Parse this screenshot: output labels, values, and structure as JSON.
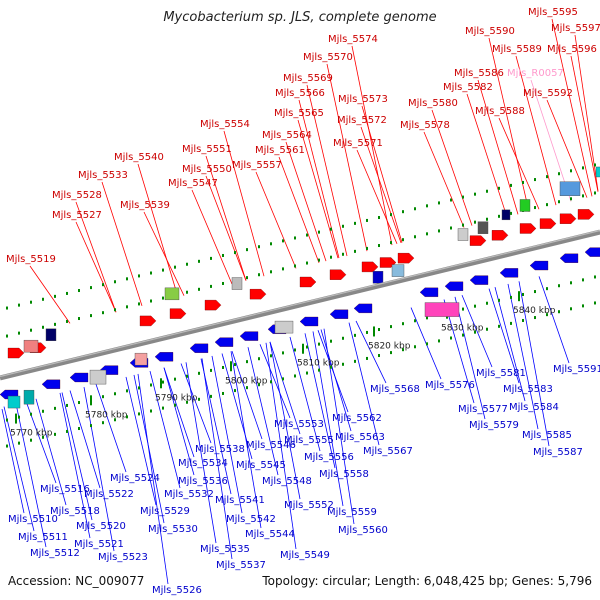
{
  "title": "Mycobacterium sp. JLS, complete genome",
  "footer": {
    "accession": "Accession: NC_009077",
    "summary": "Topology: circular; Length: 6,048,425 bp; Genes: 5,796"
  },
  "colors": {
    "forward_gene": "#ff0000",
    "reverse_gene": "#0000ee",
    "rna_gene": "#ff99cc",
    "backbone": "#888888",
    "tick_mark": "#008800"
  },
  "scale_ticks": [
    "5770 kbp",
    "5780 kbp",
    "5790 kbp",
    "5800 kbp",
    "5810 kbp",
    "5820 kbp",
    "5830 kbp",
    "5840 kbp"
  ],
  "labels_top": [
    "Mjls_5519",
    "Mjls_5527",
    "Mjls_5528",
    "Mjls_5533",
    "Mjls_5539",
    "Mjls_5540",
    "Mjls_5547",
    "Mjls_5550",
    "Mjls_5551",
    "Mjls_5554",
    "Mjls_5557",
    "Mjls_5561",
    "Mjls_5564",
    "Mjls_5565",
    "Mjls_5566",
    "Mjls_5569",
    "Mjls_5570",
    "Mjls_5571",
    "Mjls_5572",
    "Mjls_5573",
    "Mjls_5574",
    "Mjls_5578",
    "Mjls_5580",
    "Mjls_5582",
    "Mjls_5586",
    "Mjls_5588",
    "Mjls_5589",
    "Mjls_5590",
    "Mjls_R0057",
    "Mjls_5592",
    "Mjls_5595",
    "Mjls_5596",
    "Mjls_5597"
  ],
  "labels_bottom": [
    "Mjls_5510",
    "Mjls_5511",
    "Mjls_5512",
    "Mjls_5516",
    "Mjls_5518",
    "Mjls_5520",
    "Mjls_5521",
    "Mjls_5522",
    "Mjls_5523",
    "Mjls_5524",
    "Mjls_5526",
    "Mjls_5529",
    "Mjls_5530",
    "Mjls_5532",
    "Mjls_5534",
    "Mjls_5535",
    "Mjls_5536",
    "Mjls_5537",
    "Mjls_5538",
    "Mjls_5541",
    "Mjls_5542",
    "Mjls_5544",
    "Mjls_5545",
    "Mjls_5546",
    "Mjls_5548",
    "Mjls_5549",
    "Mjls_5552",
    "Mjls_5553",
    "Mjls_5555",
    "Mjls_5556",
    "Mjls_5558",
    "Mjls_5559",
    "Mjls_5560",
    "Mjls_5562",
    "Mjls_5563",
    "Mjls_5567",
    "Mjls_5568",
    "Mjls_5576",
    "Mjls_5577",
    "Mjls_5579",
    "Mjls_5581",
    "Mjls_5583",
    "Mjls_5584",
    "Mjls_5585",
    "Mjls_5587",
    "Mjls_5591"
  ]
}
